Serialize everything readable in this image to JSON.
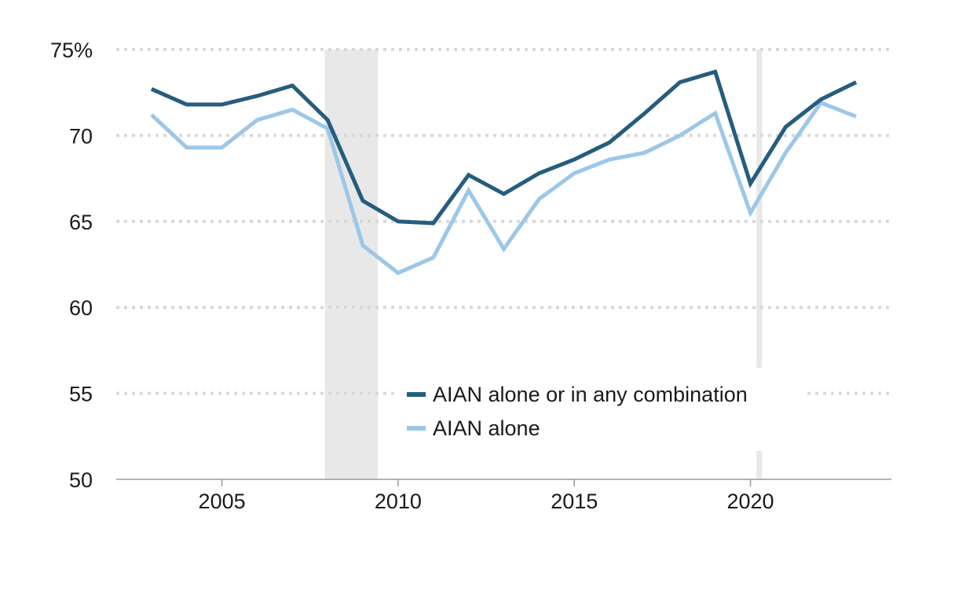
{
  "chart_data": {
    "type": "line",
    "x": [
      2003,
      2004,
      2005,
      2006,
      2007,
      2008,
      2009,
      2010,
      2011,
      2012,
      2013,
      2014,
      2015,
      2016,
      2017,
      2018,
      2019,
      2020,
      2021,
      2022,
      2023
    ],
    "series": [
      {
        "name": "AIAN alone or in any combination",
        "color": "#255d7e",
        "values": [
          72.7,
          71.8,
          71.8,
          72.3,
          72.9,
          70.9,
          66.2,
          65.0,
          64.9,
          67.7,
          66.6,
          67.8,
          68.6,
          69.6,
          71.3,
          73.1,
          73.7,
          67.2,
          70.5,
          72.1,
          73.1
        ]
      },
      {
        "name": "AIAN alone",
        "color": "#9cc7e8",
        "values": [
          71.2,
          69.3,
          69.3,
          70.9,
          71.5,
          70.4,
          63.6,
          62.0,
          62.9,
          66.8,
          63.4,
          66.3,
          67.8,
          68.6,
          69.0,
          70.0,
          71.3,
          65.5,
          69.0,
          71.9,
          71.1
        ]
      }
    ],
    "xlim": [
      2002,
      2024
    ],
    "ylim": [
      50,
      75
    ],
    "xticks": [
      2005,
      2010,
      2015,
      2020
    ],
    "xtick_labels": [
      "2005",
      "2010",
      "2015",
      "2020"
    ],
    "yticks": [
      50,
      55,
      60,
      65,
      70,
      75
    ],
    "ytick_labels": [
      "50",
      "55",
      "60",
      "65",
      "70",
      "75%"
    ],
    "recessions": [
      {
        "start": 2007.92,
        "end": 2009.42
      },
      {
        "start": 2020.17,
        "end": 2020.33
      }
    ],
    "recession_color": "#e8e8e8",
    "grid": "horizontal dotted",
    "legend_position": "lower-right",
    "title": "",
    "xlabel": "",
    "ylabel": ""
  }
}
